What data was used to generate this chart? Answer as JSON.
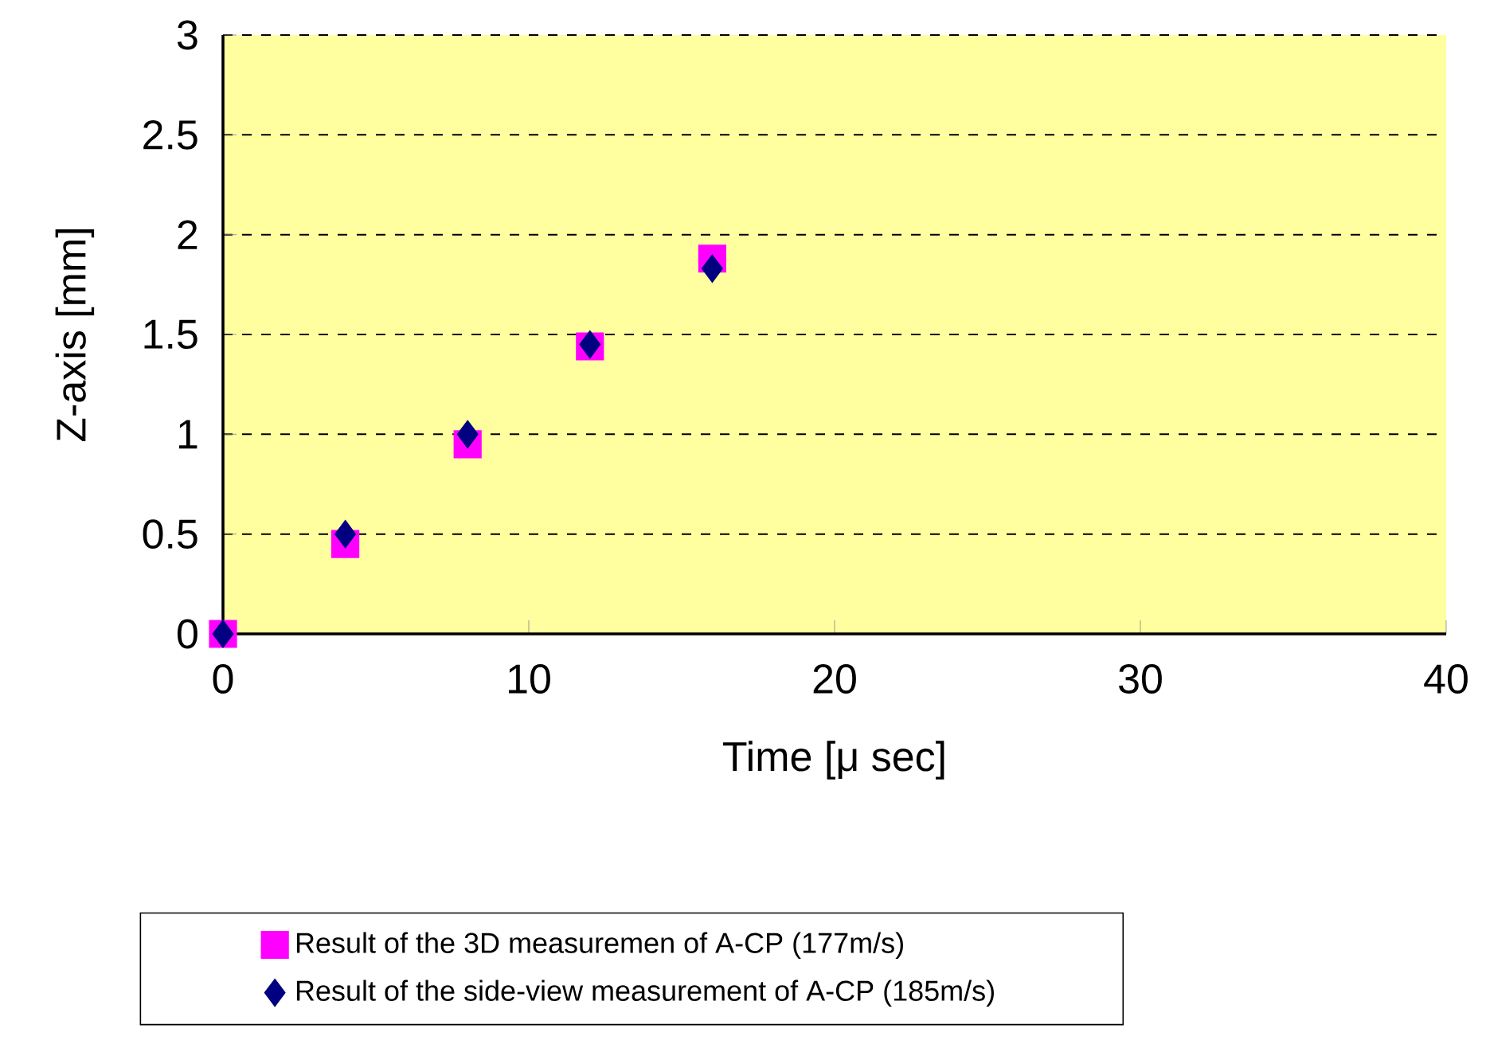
{
  "chart_data": {
    "type": "scatter",
    "xlabel": "Time [μ sec]",
    "ylabel": "Z-axis [mm]",
    "xlim": [
      0,
      40
    ],
    "xticks": [
      0,
      10,
      20,
      30,
      40
    ],
    "ylim": [
      0,
      3
    ],
    "yticks": [
      0,
      0.5,
      1,
      1.5,
      2,
      2.5,
      3
    ],
    "grid": "y",
    "legend": "bottom",
    "series": [
      {
        "name": "Result of the 3D measuremen of A-CP (177m/s)",
        "color": "#ff00ff",
        "marker": "square",
        "x": [
          0,
          4,
          8,
          12,
          16
        ],
        "values": [
          0,
          0.45,
          0.95,
          1.44,
          1.88
        ]
      },
      {
        "name": "Result of the side-view measurement of A-CP (185m/s)",
        "color": "#000080",
        "marker": "diamond",
        "x": [
          0,
          4,
          8,
          12,
          16
        ],
        "values": [
          0,
          0.5,
          1.0,
          1.45,
          1.83
        ]
      }
    ]
  }
}
